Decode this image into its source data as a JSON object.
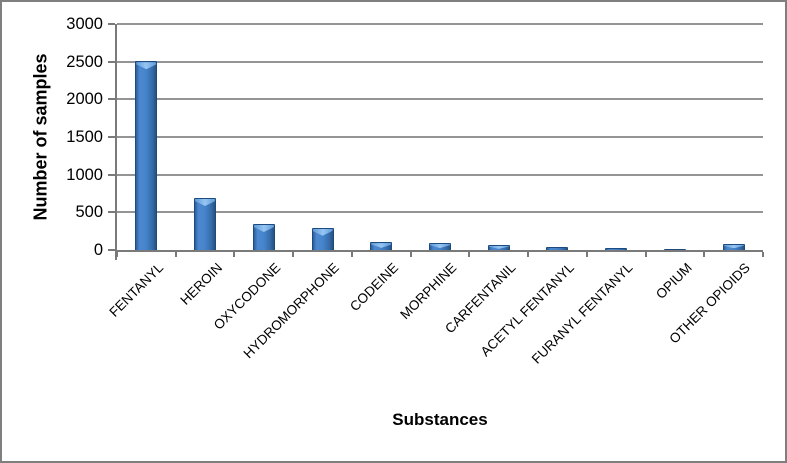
{
  "chart_data": {
    "type": "bar",
    "title": "",
    "categories": [
      "FENTANYL",
      "HEROIN",
      "OXYCODONE",
      "HYDROMORPHONE",
      "CODEINE",
      "MORPHINE",
      "CARFENTANIL",
      "ACETYL FENTANYL",
      "FURANYL FENTANYL",
      "OPIUM",
      "OTHER OPIOIDS"
    ],
    "values": [
      2505,
      690,
      345,
      295,
      105,
      95,
      70,
      45,
      30,
      15,
      85
    ],
    "xlabel": "Substances",
    "ylabel": "Number of samples",
    "ylim": [
      0,
      3000
    ],
    "yticks": [
      0,
      500,
      1000,
      1500,
      2000,
      2500,
      3000
    ],
    "grid": "horizontal-only",
    "legend": "none",
    "bar_style": "3d-bevel-blue"
  },
  "colors": {
    "bar_main": "#4584cb",
    "bar_highlight": "#96c5f2",
    "bar_shadow": "#27527f",
    "bar_border": "#1d4b80",
    "gridline": "#949494",
    "axis": "#7a7a7a",
    "frame_border": "#7f7f7f",
    "text": "#000000",
    "background": "#ffffff"
  }
}
